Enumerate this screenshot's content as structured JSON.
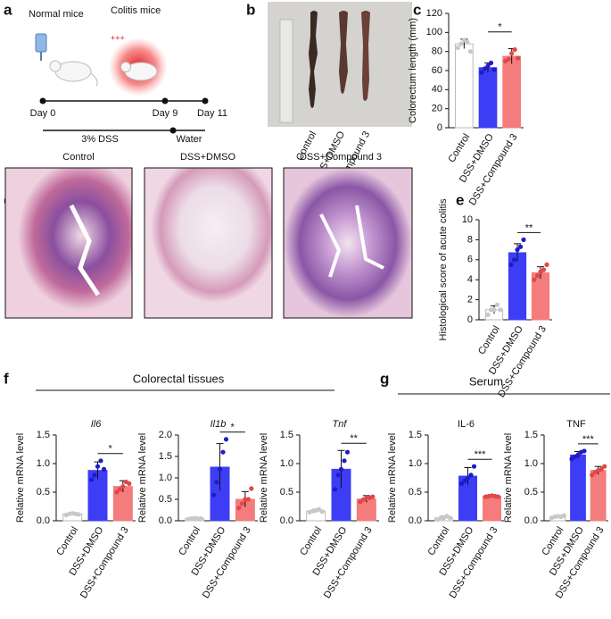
{
  "panel_labels": [
    "a",
    "b",
    "c",
    "d",
    "e",
    "f",
    "g"
  ],
  "diagram": {
    "normal": "Normal mice",
    "colitis": "Colitis mice",
    "intensity": "+++",
    "days": [
      "Day 0",
      "Day 9",
      "Day 11"
    ],
    "phases": [
      "3% DSS",
      "Water"
    ]
  },
  "photo": {
    "labels": [
      "Control",
      "DSS+DMSO",
      "DSS+Compound 3"
    ]
  },
  "histology": {
    "titles": [
      "Control",
      "DSS+DMSO",
      "DSS+Compound 3"
    ]
  },
  "group_headers": [
    "Colorectal tissues",
    "Serum"
  ],
  "chart_data": [
    {
      "type": "bar",
      "ylabel": "Colorectum length (mm)",
      "categories": [
        "Control",
        "DSS+DMSO",
        "DSS+Compound 3"
      ],
      "colors": [
        "#ffffff",
        "#3d3df5",
        "#f47c7c"
      ],
      "point_colors": [
        "#c8c8c8",
        "#1c1cc8",
        "#e04848"
      ],
      "values": [
        88,
        63,
        75
      ],
      "errors": [
        5,
        5,
        8
      ],
      "points": [
        [
          84,
          88,
          92,
          90,
          80
        ],
        [
          58,
          62,
          65,
          68,
          61
        ],
        [
          70,
          72,
          78,
          82,
          73
        ]
      ],
      "ylim": [
        0,
        120
      ],
      "yticks": [
        0,
        20,
        40,
        60,
        80,
        100,
        120
      ],
      "significance": "*"
    },
    {
      "type": "bar",
      "ylabel": "Histological score of acute colitis",
      "categories": [
        "Control",
        "DSS+DMSO",
        "DSS+Compound 3"
      ],
      "colors": [
        "#ffffff",
        "#3d3df5",
        "#f47c7c"
      ],
      "point_colors": [
        "#c8c8c8",
        "#1c1cc8",
        "#e04848"
      ],
      "values": [
        1,
        6.7,
        4.7
      ],
      "errors": [
        0.4,
        0.9,
        0.6
      ],
      "points": [
        [
          0.5,
          1,
          1,
          1.5,
          1
        ],
        [
          5.5,
          6,
          7,
          7.3,
          8
        ],
        [
          4,
          4.4,
          4.8,
          5,
          5.5
        ]
      ],
      "ylim": [
        0,
        10
      ],
      "yticks": [
        0,
        2,
        4,
        6,
        8,
        10
      ],
      "significance": "**"
    },
    {
      "type": "bar",
      "title": "Il6",
      "ylabel": "Relative mRNA level",
      "categories": [
        "Control",
        "DSS+DMSO",
        "DSS+Compound 3"
      ],
      "colors": [
        "#ffffff",
        "#3d3df5",
        "#f47c7c"
      ],
      "point_colors": [
        "#c8c8c8",
        "#1c1cc8",
        "#e04848"
      ],
      "values": [
        0.12,
        0.88,
        0.6
      ],
      "errors": [
        0.02,
        0.15,
        0.1
      ],
      "points": [
        [
          0.1,
          0.12,
          0.13,
          0.12,
          0.11
        ],
        [
          0.72,
          0.8,
          0.95,
          1.05,
          0.9
        ],
        [
          0.5,
          0.55,
          0.6,
          0.68,
          0.65
        ]
      ],
      "ylim": [
        0,
        1.5
      ],
      "yticks": [
        {
          "value": 0,
          "label": "0.0"
        },
        0.5,
        {
          "value": 1,
          "label": "1.0"
        },
        1.5
      ],
      "significance": "*"
    },
    {
      "type": "bar",
      "title": "Il1b",
      "ylabel": "Relative mRNA level",
      "categories": [
        "Control",
        "DSS+DMSO",
        "DSS+Compound 3"
      ],
      "colors": [
        "#ffffff",
        "#3d3df5",
        "#f47c7c"
      ],
      "point_colors": [
        "#c8c8c8",
        "#1c1cc8",
        "#e04848"
      ],
      "values": [
        0.05,
        1.25,
        0.5
      ],
      "errors": [
        0.01,
        0.55,
        0.18
      ],
      "points": [
        [
          0.04,
          0.05,
          0.06,
          0.05,
          0.05
        ],
        [
          0.6,
          0.9,
          1.2,
          1.6,
          1.9
        ],
        [
          0.3,
          0.4,
          0.5,
          0.5,
          0.75
        ]
      ],
      "ylim": [
        0,
        2
      ],
      "yticks": [
        {
          "value": 0,
          "label": "0.0"
        },
        0.5,
        {
          "value": 1,
          "label": "1.0"
        },
        1.5,
        {
          "value": 2,
          "label": "2.0"
        }
      ],
      "significance": "*"
    },
    {
      "type": "bar",
      "title": "Tnf",
      "ylabel": "Relative mRNA level",
      "categories": [
        "Control",
        "DSS+DMSO",
        "DSS+Compound 3"
      ],
      "colors": [
        "#ffffff",
        "#3d3df5",
        "#f47c7c"
      ],
      "point_colors": [
        "#c8c8c8",
        "#1c1cc8",
        "#e04848"
      ],
      "values": [
        0.17,
        0.9,
        0.38
      ],
      "errors": [
        0.03,
        0.33,
        0.06
      ],
      "points": [
        [
          0.15,
          0.17,
          0.18,
          0.2,
          0.16
        ],
        [
          0.55,
          0.8,
          0.9,
          1.05,
          1.2
        ],
        [
          0.33,
          0.37,
          0.4,
          0.4,
          0.42
        ]
      ],
      "ylim": [
        0,
        1.5
      ],
      "yticks": [
        {
          "value": 0,
          "label": "0.0"
        },
        0.5,
        {
          "value": 1,
          "label": "1.0"
        },
        1.5
      ],
      "significance": "**"
    },
    {
      "type": "bar",
      "title": "IL-6",
      "ylabel": "Relative mRNA level",
      "categories": [
        "Control",
        "DSS+DMSO",
        "DSS+Compound 3"
      ],
      "colors": [
        "#ffffff",
        "#3d3df5",
        "#f47c7c"
      ],
      "point_colors": [
        "#c8c8c8",
        "#1c1cc8",
        "#e04848"
      ],
      "values": [
        0.05,
        0.78,
        0.43
      ],
      "errors": [
        0.03,
        0.15,
        0.02
      ],
      "points": [
        [
          0.02,
          0.05,
          0.05,
          0.08,
          0.05
        ],
        [
          0.65,
          0.7,
          0.75,
          0.8,
          0.95
        ],
        [
          0.42,
          0.43,
          0.44,
          0.43,
          0.42
        ]
      ],
      "ylim": [
        0,
        1.5
      ],
      "yticks": [
        {
          "value": 0,
          "label": "0.0"
        },
        0.5,
        {
          "value": 1,
          "label": "1.0"
        },
        1.5
      ],
      "significance": "***"
    },
    {
      "type": "bar",
      "title": "TNF",
      "ylabel": "Relative mRNA level",
      "categories": [
        "Control",
        "DSS+DMSO",
        "DSS+Compound 3"
      ],
      "colors": [
        "#ffffff",
        "#3d3df5",
        "#f47c7c"
      ],
      "point_colors": [
        "#c8c8c8",
        "#1c1cc8",
        "#e04848"
      ],
      "values": [
        0.07,
        1.15,
        0.88
      ],
      "errors": [
        0.02,
        0.06,
        0.07
      ],
      "points": [
        [
          0.05,
          0.07,
          0.08,
          0.07,
          0.09
        ],
        [
          1.08,
          1.12,
          1.15,
          1.2,
          1.22
        ],
        [
          0.8,
          0.85,
          0.88,
          0.9,
          0.95
        ]
      ],
      "ylim": [
        0,
        1.5
      ],
      "yticks": [
        {
          "value": 0,
          "label": "0.0"
        },
        0.5,
        {
          "value": 1,
          "label": "1.0"
        },
        1.5
      ],
      "significance": "***"
    }
  ]
}
